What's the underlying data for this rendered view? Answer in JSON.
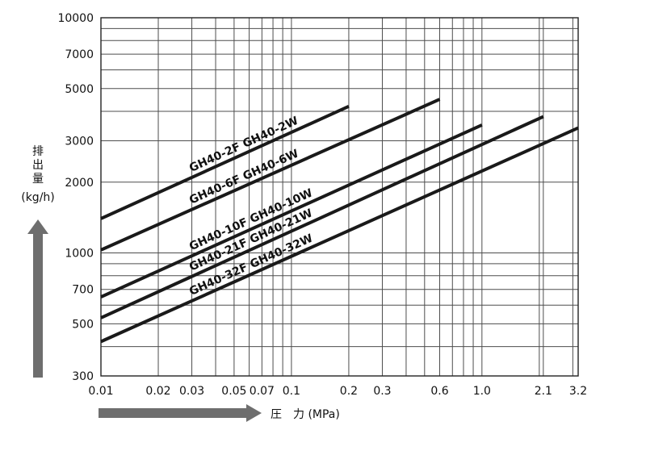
{
  "chart_data": {
    "type": "line",
    "x_scale": "log",
    "y_scale": "log",
    "xlim": [
      0.01,
      3.2
    ],
    "ylim": [
      300,
      10000
    ],
    "grid": true,
    "x_ticks": [
      0.01,
      0.02,
      0.03,
      0.05,
      0.07,
      0.1,
      0.2,
      0.3,
      0.6,
      1.0,
      2.1,
      3.2
    ],
    "x_tick_labels": [
      "0.01",
      "0.02",
      "0.03",
      "0.05",
      "0.07",
      "0.1",
      "0.2",
      "0.3",
      "0.6",
      "1.0",
      "2.1",
      "3.2"
    ],
    "y_ticks": [
      300,
      500,
      700,
      1000,
      2000,
      3000,
      5000,
      7000,
      10000
    ],
    "y_tick_labels": [
      "300",
      "500",
      "700",
      "1000",
      "2000",
      "3000",
      "5000",
      "7000",
      "10000"
    ],
    "x_minor_grid": [
      0.04,
      0.06,
      0.08,
      0.09,
      0.4,
      0.5,
      0.7,
      0.8,
      0.9,
      2.0,
      3.0
    ],
    "y_minor_grid": [
      400,
      600,
      800,
      900,
      4000,
      6000,
      8000,
      9000
    ],
    "xlabel": "圧　力 (MPa)",
    "ylabel_chars": [
      "排",
      "出",
      "量"
    ],
    "ylabel_unit": "(kg/h)",
    "series": [
      {
        "name": "GH40-2F  GH40-2W",
        "x": [
          0.01,
          0.2
        ],
        "y": [
          1400,
          4200
        ]
      },
      {
        "name": "GH40-6F  GH40-6W",
        "x": [
          0.01,
          0.6
        ],
        "y": [
          1030,
          4500
        ]
      },
      {
        "name": "GH40-10F  GH40-10W",
        "x": [
          0.01,
          1.0
        ],
        "y": [
          650,
          3500
        ]
      },
      {
        "name": "GH40-21F  GH40-21W",
        "x": [
          0.01,
          2.1
        ],
        "y": [
          530,
          3800
        ]
      },
      {
        "name": "GH40-32F  GH40-32W",
        "x": [
          0.01,
          3.2
        ],
        "y": [
          420,
          3400
        ]
      }
    ],
    "colors": {
      "line": "#1a1a1a",
      "grid": "#4d4d4d",
      "arrow": "#6e6e6e"
    }
  }
}
